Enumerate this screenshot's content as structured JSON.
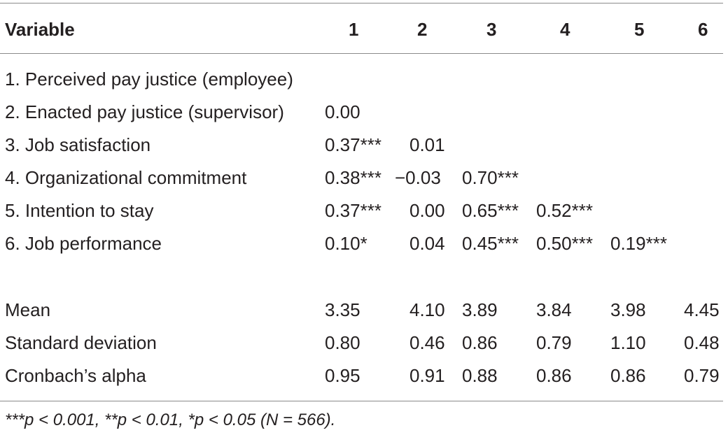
{
  "table": {
    "headers": [
      "Variable",
      "1",
      "2",
      "3",
      "4",
      "5",
      "6"
    ],
    "rows": [
      {
        "label": "1. Perceived pay justice (employee)",
        "cells": [
          "",
          "",
          "",
          "",
          "",
          ""
        ]
      },
      {
        "label": "2. Enacted pay justice (supervisor)",
        "cells": [
          "0.00",
          "",
          "",
          "",
          "",
          ""
        ]
      },
      {
        "label": "3. Job satisfaction",
        "cells": [
          "0.37***",
          "0.01",
          "",
          "",
          "",
          ""
        ]
      },
      {
        "label": "4. Organizational commitment",
        "cells": [
          "0.38***",
          "−0.03",
          "0.70***",
          "",
          "",
          ""
        ]
      },
      {
        "label": "5. Intention to stay",
        "cells": [
          "0.37***",
          "0.00",
          "0.65***",
          "0.52***",
          "",
          ""
        ]
      },
      {
        "label": "6. Job performance",
        "cells": [
          "0.10*",
          "0.04",
          "0.45***",
          "0.50***",
          "0.19***",
          ""
        ]
      },
      {
        "label": "Mean",
        "cells": [
          "3.35",
          "4.10",
          "3.89",
          "3.84",
          "3.98",
          "4.45"
        ]
      },
      {
        "label": "Standard deviation",
        "cells": [
          "0.80",
          "0.46",
          "0.86",
          "0.79",
          "1.10",
          "0.48"
        ]
      },
      {
        "label": "Cronbach’s alpha",
        "cells": [
          "0.95",
          "0.91",
          "0.88",
          "0.86",
          "0.86",
          "0.79"
        ]
      }
    ],
    "footnote": "***p < 0.001, **p < 0.01, *p < 0.05 (N = 566)."
  }
}
